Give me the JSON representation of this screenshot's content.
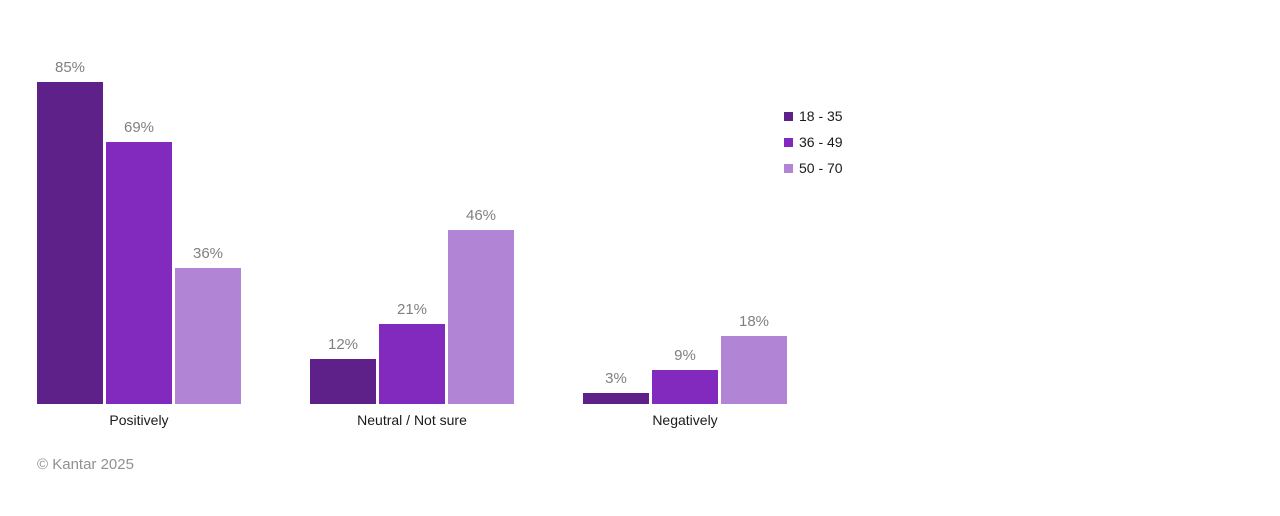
{
  "chart_data": {
    "type": "bar",
    "title": "",
    "categories": [
      "Positively",
      "Neutral / Not sure",
      "Negatively"
    ],
    "series": [
      {
        "name": "18 - 35",
        "color": "#5E2189",
        "values": [
          85,
          12,
          3
        ]
      },
      {
        "name": "36 - 49",
        "color": "#8229BE",
        "values": [
          69,
          21,
          9
        ]
      },
      {
        "name": "50 - 70",
        "color": "#B184D6",
        "values": [
          36,
          46,
          18
        ]
      }
    ],
    "value_suffix": "%",
    "ylim": [
      0,
      100
    ],
    "grid": false,
    "axis_line": false,
    "legend_position": "right",
    "colors": {
      "background": "#FFFFFF",
      "value_label": "#808080",
      "category_label": "#1A1A1A",
      "legend_label": "#1A1A1A",
      "footer_text": "#919191"
    }
  },
  "footer": {
    "copyright": "© Kantar 2025"
  }
}
